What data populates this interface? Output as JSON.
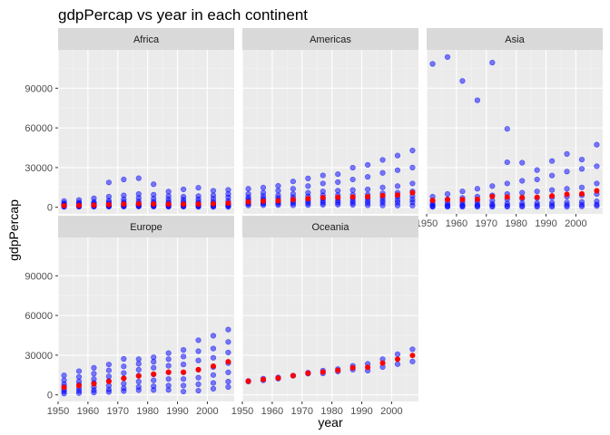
{
  "chart_data": {
    "type": "scatter",
    "title": "gdpPercap vs year in each continent",
    "xlabel": "year",
    "ylabel": "gdpPercap",
    "xlim": [
      1950,
      2009
    ],
    "ylim": [
      -5000,
      119000
    ],
    "x_ticks": [
      1950,
      1960,
      1970,
      1980,
      1990,
      2000
    ],
    "y_ticks": [
      0,
      30000,
      60000,
      90000
    ],
    "grid": true,
    "facet_layout": "3 columns, 2 rows",
    "colors": {
      "points": "#0000ff",
      "means": "#ff0000",
      "panel_bg": "#ebebeb",
      "strip_bg": "#d9d9d9",
      "grid_major": "#ffffff"
    },
    "years": [
      1952,
      1957,
      1962,
      1967,
      1972,
      1977,
      1982,
      1987,
      1992,
      1997,
      2002,
      2007
    ],
    "panels": [
      {
        "name": "Africa",
        "means": [
          1253,
          1385,
          1598,
          2050,
          2340,
          2585,
          2482,
          2283,
          2282,
          2379,
          2599,
          3089
        ],
        "points": [
          [
            1952,
            [
              299,
              600,
              1000,
              1400,
              1800,
              2400,
              3000,
              4725
            ]
          ],
          [
            1957,
            [
              336,
              700,
              1100,
              1500,
              2000,
              2700,
              3500,
              5487
            ]
          ],
          [
            1962,
            [
              355,
              750,
              1200,
              1600,
              2200,
              3000,
              4000,
              6757
            ]
          ],
          [
            1967,
            [
              413,
              800,
              1300,
              1800,
              2500,
              3500,
              5000,
              8000,
              18773
            ]
          ],
          [
            1972,
            [
              464,
              850,
              1400,
              2000,
              2800,
              4000,
              6000,
              9000,
              21011
            ]
          ],
          [
            1977,
            [
              502,
              900,
              1500,
              2100,
              3000,
              4500,
              7000,
              10000,
              21951
            ]
          ],
          [
            1982,
            [
              462,
              850,
              1400,
              2000,
              2900,
              4200,
              6500,
              9500,
              17364
            ]
          ],
          [
            1987,
            [
              389,
              800,
              1300,
              1900,
              2800,
              4000,
              6000,
              8500,
              11864
            ]
          ],
          [
            1992,
            [
              410,
              800,
              1300,
              1900,
              2700,
              3900,
              5800,
              8000,
              13522
            ]
          ],
          [
            1997,
            [
              312,
              800,
              1300,
              1900,
              2800,
              4000,
              6000,
              8500,
              14723
            ]
          ],
          [
            2002,
            [
              241,
              800,
              1400,
              2000,
              2900,
              4200,
              6500,
              9000,
              12522
            ]
          ],
          [
            2007,
            [
              278,
              900,
              1500,
              2200,
              3200,
              4800,
              7500,
              10000,
              13206
            ]
          ]
        ]
      },
      {
        "name": "Americas",
        "means": [
          4079,
          4616,
          4902,
          5668,
          6491,
          7352,
          7507,
          7793,
          8045,
          8889,
          9288,
          11003
        ],
        "points": [
          [
            1952,
            [
              1398,
              2500,
              3500,
              4500,
              6000,
              7500,
              10000,
              13990
            ]
          ],
          [
            1957,
            [
              1544,
              2700,
              3800,
              5000,
              6500,
              8500,
              11000,
              14847
            ]
          ],
          [
            1962,
            [
              1662,
              2900,
              4100,
              5400,
              7000,
              9000,
              12500,
              16173
            ]
          ],
          [
            1967,
            [
              1452,
              3000,
              4300,
              5800,
              7500,
              10000,
              14000,
              19530
            ]
          ],
          [
            1972,
            [
              1654,
              3200,
              4600,
              6300,
              8200,
              11000,
              16000,
              21806
            ]
          ],
          [
            1977,
            [
              1874,
              3400,
              5000,
              6800,
              9000,
              12000,
              18000,
              24073
            ]
          ],
          [
            1982,
            [
              2011,
              3500,
              5100,
              7000,
              9200,
              12500,
              19000,
              25010
            ]
          ],
          [
            1987,
            [
              1823,
              3400,
              5000,
              7000,
              9500,
              13000,
              21000,
              29884
            ]
          ],
          [
            1992,
            [
              1456,
              3300,
              5000,
              7000,
              9500,
              13500,
              23000,
              32004
            ]
          ],
          [
            1997,
            [
              1342,
              3500,
              5300,
              7500,
              10500,
              15000,
              26000,
              35767
            ]
          ],
          [
            2002,
            [
              1270,
              3500,
              5400,
              7800,
              11000,
              16000,
              28000,
              39097
            ]
          ],
          [
            2007,
            [
              1202,
              3800,
              5800,
              8500,
              12000,
              18000,
              30000,
              42952
            ]
          ]
        ]
      },
      {
        "name": "Asia",
        "means": [
          5195,
          5788,
          5729,
          5971,
          8187,
          7791,
          7434,
          7608,
          8640,
          9834,
          10174,
          12473
        ],
        "points": [
          [
            1952,
            [
              331,
              800,
              1500,
              3000,
              5000,
              8000,
              108382
            ]
          ],
          [
            1957,
            [
              350,
              900,
              1700,
              3500,
              6000,
              10000,
              113523
            ]
          ],
          [
            1962,
            [
              388,
              1000,
              1900,
              4000,
              7000,
              12000,
              95458
            ]
          ],
          [
            1967,
            [
              349,
              1100,
              2100,
              4500,
              8000,
              14000,
              80895
            ]
          ],
          [
            1972,
            [
              357,
              1200,
              2400,
              5000,
              9000,
              16000,
              109348
            ]
          ],
          [
            1977,
            [
              371,
              1300,
              2800,
              6000,
              10000,
              18000,
              34000,
              59265
            ]
          ],
          [
            1982,
            [
              424,
              1400,
              3000,
              6500,
              11000,
              20000,
              33693
            ]
          ],
          [
            1987,
            [
              385,
              1500,
              3200,
              7000,
              12000,
              21000,
              28118
            ]
          ],
          [
            1992,
            [
              347,
              1600,
              3400,
              7500,
              13000,
              24000,
              34933
            ]
          ],
          [
            1997,
            [
              415,
              1700,
              3700,
              8000,
              14000,
              27000,
              40300
            ]
          ],
          [
            2002,
            [
              611,
              1900,
              4000,
              9000,
              15000,
              29000,
              36023
            ]
          ],
          [
            2007,
            [
              944,
              2100,
              4500,
              10000,
              18000,
              31000,
              47307
            ]
          ]
        ]
      },
      {
        "name": "Europe",
        "means": [
          5661,
          6963,
          8365,
          10144,
          12479,
          14283,
          15617,
          17214,
          17062,
          19077,
          21712,
          25054
        ],
        "points": [
          [
            1952,
            [
              974,
              2500,
              4000,
              6000,
              8000,
              11000,
              14734
            ]
          ],
          [
            1957,
            [
              1354,
              3000,
              5000,
              7500,
              10000,
              13500,
              17909
            ]
          ],
          [
            1962,
            [
              1710,
              3500,
              6000,
              9000,
              12000,
              16000,
              20431
            ]
          ],
          [
            1967,
            [
              2172,
              4000,
              7000,
              10500,
              14000,
              18500,
              22966
            ]
          ],
          [
            1972,
            [
              2860,
              5000,
              8500,
              12500,
              16500,
              21500,
              27195
            ]
          ],
          [
            1977,
            [
              3528,
              6000,
              10000,
              14500,
              19000,
              23500,
              26982
            ]
          ],
          [
            1982,
            [
              3630,
              6500,
              11000,
              15500,
              20500,
              25000,
              28398
            ]
          ],
          [
            1987,
            [
              3739,
              7000,
              12000,
              17000,
              22000,
              27000,
              31541
            ]
          ],
          [
            1992,
            [
              2497,
              7000,
              12000,
              17000,
              23000,
              29000,
              33965
            ]
          ],
          [
            1997,
            [
              3193,
              8000,
              13000,
              19000,
              26000,
              33000,
              41283
            ]
          ],
          [
            2002,
            [
              4604,
              9000,
              15000,
              21000,
              28000,
              35000,
              44684
            ]
          ],
          [
            2007,
            [
              5937,
              10000,
              17000,
              24000,
              32000,
              40000,
              49357
            ]
          ]
        ]
      },
      {
        "name": "Oceania",
        "means": [
          10298,
          11599,
          12696,
          14495,
          16417,
          17284,
          18555,
          20448,
          20894,
          24024,
          26939,
          29810
        ],
        "points": [
          [
            1952,
            [
              10040,
              10557
            ]
          ],
          [
            1957,
            [
              10950,
              12247
            ]
          ],
          [
            1962,
            [
              12218,
              13176
            ]
          ],
          [
            1967,
            [
              14464,
              14526
            ]
          ],
          [
            1972,
            [
              16789,
              16046
            ]
          ],
          [
            1977,
            [
              18334,
              16234
            ]
          ],
          [
            1982,
            [
              19477,
              17632
            ]
          ],
          [
            1987,
            [
              21889,
              19007
            ]
          ],
          [
            1992,
            [
              23425,
              18363
            ]
          ],
          [
            1997,
            [
              26998,
              21050
            ]
          ],
          [
            2002,
            [
              30688,
              23190
            ]
          ],
          [
            2007,
            [
              34435,
              25185
            ]
          ]
        ]
      }
    ]
  }
}
